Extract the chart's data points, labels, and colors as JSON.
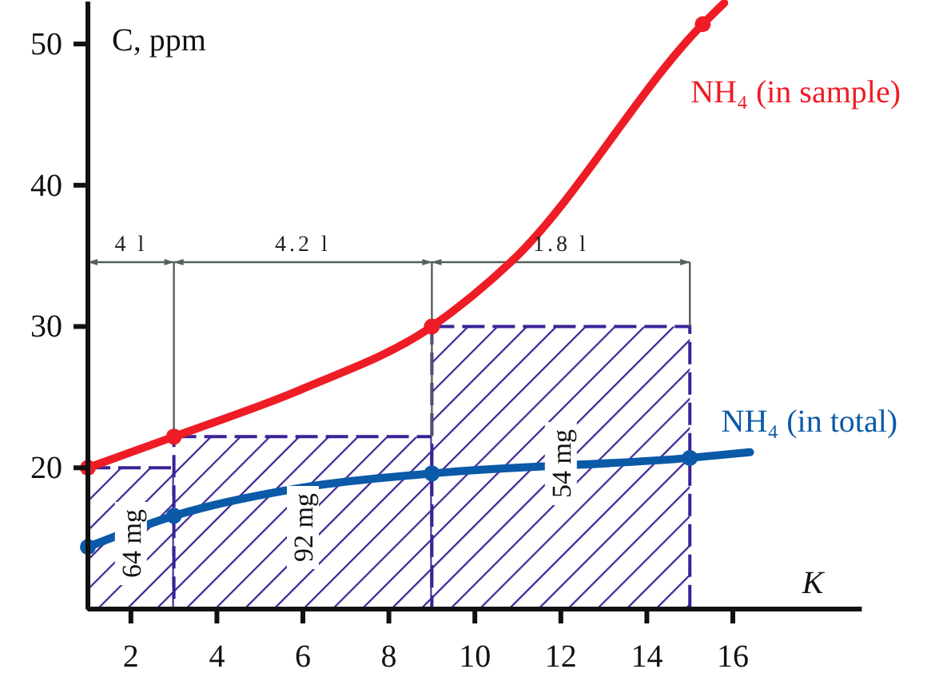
{
  "chart_data": {
    "type": "histogram",
    "bins": [
      1,
      3,
      9,
      15
    ],
    "values": [
      20,
      22.2,
      30
    ],
    "color": "#3b2296",
    "series": [
      {
        "type": "line",
        "name": "NH₄ (in sample)",
        "color": "#ee1c25",
        "x": [
          1,
          3,
          6,
          9,
          10.85,
          15.3,
          15.8
        ],
        "values": [
          20,
          22.2,
          25.6,
          30,
          34.6,
          51.4,
          52.9
        ],
        "marker": "none"
      },
      {
        "type": "scatter",
        "color": "#ee1c25",
        "x": [
          1,
          3,
          9,
          15.3
        ],
        "values": [
          20,
          22.2,
          30,
          51.4
        ],
        "marker": "circle"
      },
      {
        "type": "line",
        "name": "NH₄ (in total)",
        "color": "#0b5aa8",
        "x": [
          1,
          3,
          6,
          9,
          15,
          16.4
        ],
        "values": [
          14.4,
          16.6,
          18.6,
          19.6,
          20.7,
          21.1
        ],
        "marker": "none"
      },
      {
        "type": "scatter",
        "color": "#0b5aa8",
        "x": [
          1,
          3,
          9,
          15
        ],
        "values": [
          14.4,
          16.6,
          19.6,
          20.7
        ],
        "marker": "circle"
      }
    ],
    "xlabel": "K",
    "ylabel": "C, ppm",
    "xlim": [
      1,
      19
    ],
    "ylim": [
      10,
      53
    ],
    "xticks": [
      2,
      4,
      6,
      8,
      10,
      12,
      14,
      16
    ],
    "yticks": [
      20,
      30,
      40,
      50
    ],
    "annotations": [
      "64 mg",
      "92 mg",
      "54 mg",
      {
        "text": "4 l",
        "x": 3,
        "y": 22.2
      },
      "4.2 l",
      "1.8 l"
    ]
  }
}
